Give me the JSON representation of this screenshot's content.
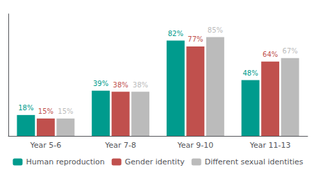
{
  "chart_data": {
    "type": "bar",
    "categories": [
      "Year 5-6",
      "Year 7-8",
      "Year 9-10",
      "Year 11-13"
    ],
    "series": [
      {
        "name": "Human reproduction",
        "color": "#009B8D",
        "values": [
          18,
          39,
          82,
          48
        ],
        "value_labels": [
          "18%",
          "39%",
          "82%",
          "48%"
        ]
      },
      {
        "name": "Gender identity",
        "color": "#C0504D",
        "values": [
          15,
          38,
          77,
          64
        ],
        "value_labels": [
          "15%",
          "38%",
          "77%",
          "64%"
        ]
      },
      {
        "name": "Different sexual identities",
        "color": "#BBBBBB",
        "values": [
          15,
          38,
          85,
          67
        ],
        "value_labels": [
          "15%",
          "38%",
          "85%",
          "67%"
        ]
      }
    ],
    "ylim": [
      0,
      105
    ],
    "grid": false,
    "legend": "bottom",
    "data_labels": true,
    "tick_labels": "x"
  }
}
